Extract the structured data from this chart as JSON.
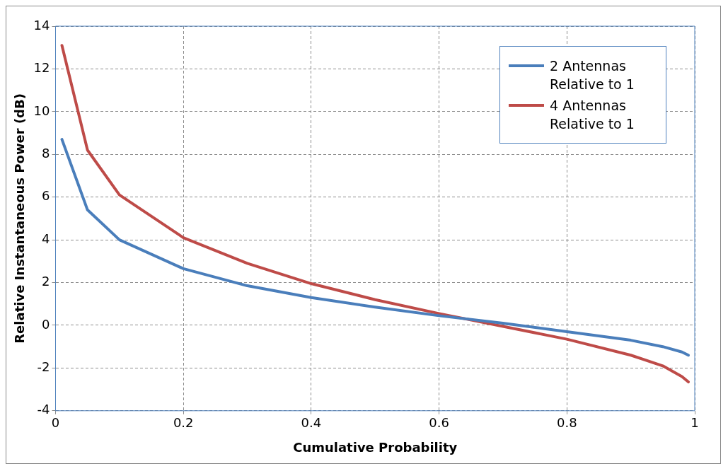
{
  "chart_data": {
    "type": "line",
    "xlabel": "Cumulative Probability",
    "ylabel": "Relative Instantaneous Power (dB)",
    "xlim": [
      0,
      1
    ],
    "xticks": [
      0,
      0.2,
      0.4,
      0.6,
      0.8,
      1
    ],
    "ylim": [
      -4,
      14
    ],
    "yticks": [
      -4,
      -2,
      0,
      2,
      4,
      6,
      8,
      10,
      12,
      14
    ],
    "grid": true,
    "legend": "top right",
    "marker": "none",
    "line_style": "solid",
    "series": [
      {
        "name": "2 Antennas Relative to 1",
        "color": "#4a7ebb",
        "x": [
          0.01,
          0.05,
          0.1,
          0.2,
          0.3,
          0.4,
          0.5,
          0.6,
          0.7,
          0.8,
          0.9,
          0.95,
          0.98,
          0.99
        ],
        "values": [
          8.7,
          5.4,
          4.0,
          2.65,
          1.85,
          1.3,
          0.85,
          0.45,
          0.1,
          -0.3,
          -0.7,
          -1.0,
          -1.25,
          -1.4
        ]
      },
      {
        "name": "4 Antennas Relative to 1",
        "color": "#be4b48",
        "x": [
          0.01,
          0.05,
          0.1,
          0.2,
          0.3,
          0.4,
          0.5,
          0.6,
          0.7,
          0.8,
          0.9,
          0.95,
          0.98,
          0.99
        ],
        "values": [
          13.1,
          8.2,
          6.1,
          4.1,
          2.9,
          1.95,
          1.2,
          0.55,
          -0.05,
          -0.65,
          -1.4,
          -1.9,
          -2.4,
          -2.65
        ]
      }
    ]
  }
}
